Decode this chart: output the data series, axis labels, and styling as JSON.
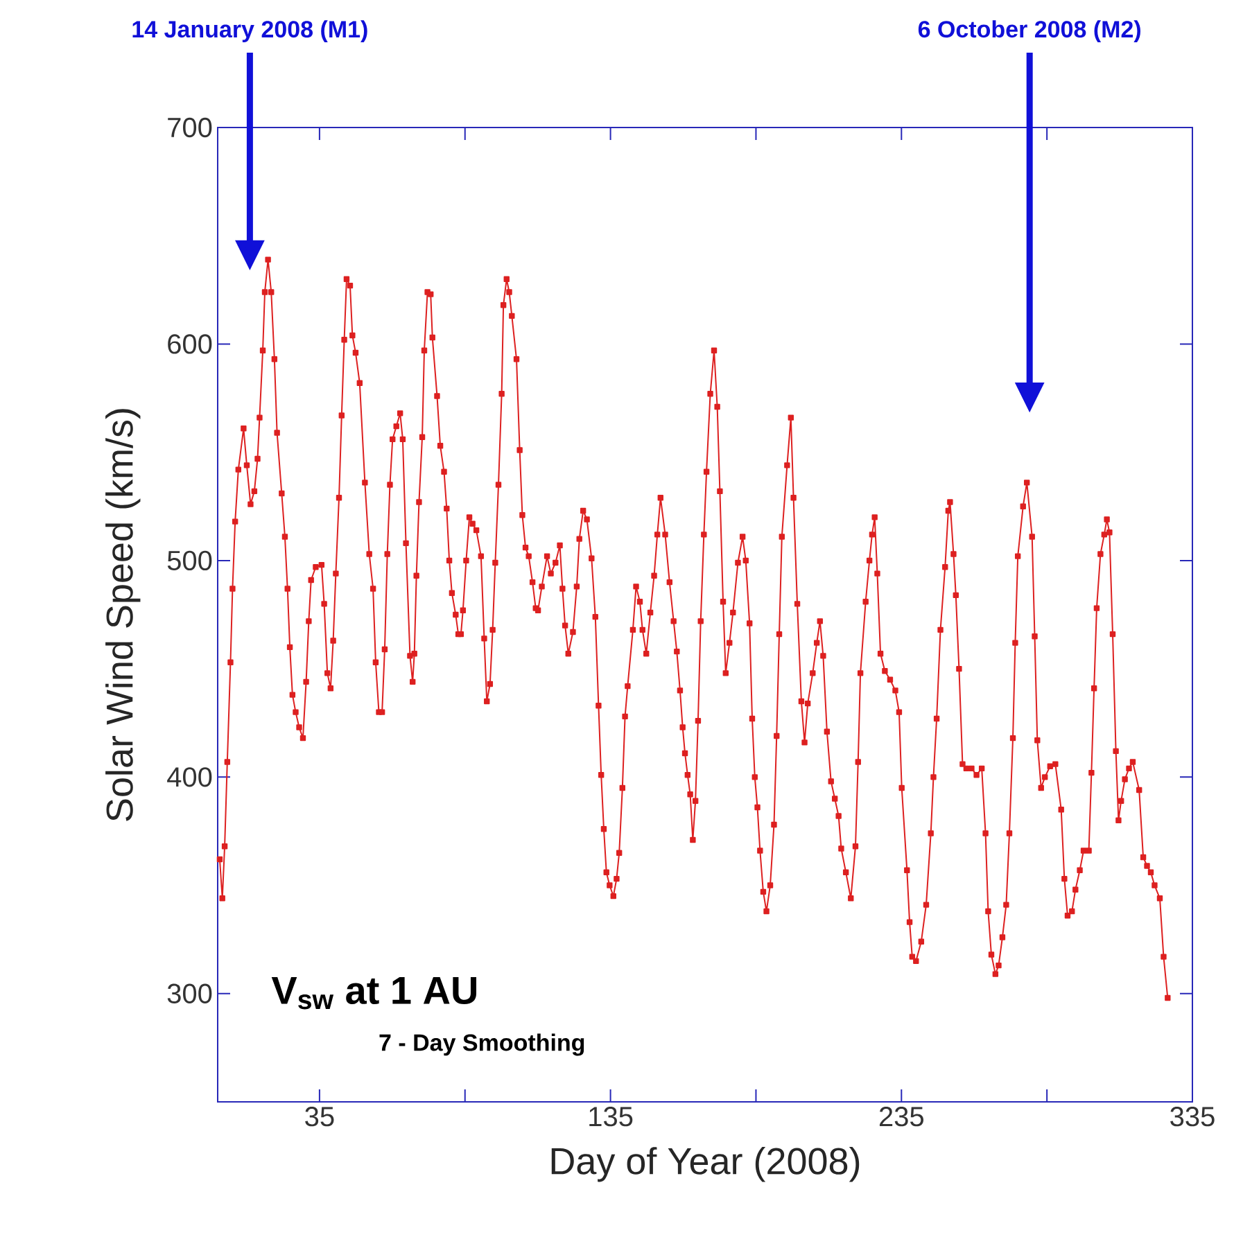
{
  "chart_data": {
    "type": "line",
    "xlabel": "Day of Year (2008)",
    "ylabel": "Solar Wind Speed (km/s)",
    "xlim": [
      0,
      335
    ],
    "ylim": [
      250,
      700
    ],
    "xticks": [
      35,
      {
        "value": 85,
        "label": null
      },
      135,
      {
        "value": 185,
        "label": null
      },
      235,
      {
        "value": 285,
        "label": null
      },
      335
    ],
    "yticks": [
      300,
      400,
      500,
      600,
      700
    ],
    "marker": "square",
    "line_style": "solid",
    "grid": false,
    "annotations": [
      "14 January 2008 (M1)",
      "6 October 2008 (M2)",
      "V$_{sw}$ at 1 AU",
      "7 - Day Smoothing"
    ],
    "series": [
      {
        "color": "#dd2020",
        "x": [
          0.7,
          1.6,
          2.4,
          3.3,
          4.4,
          5.1,
          6,
          7.1,
          8.9,
          10,
          11.3,
          12.6,
          13.7,
          14.4,
          15.5,
          16.2,
          17.3,
          18.4,
          19.5,
          20.4,
          22,
          23.1,
          24,
          24.8,
          25.7,
          26.8,
          28,
          29.3,
          30.4,
          31.3,
          32.1,
          33.7,
          35.7,
          36.6,
          37.7,
          38.8,
          39.7,
          40.6,
          41.7,
          42.6,
          43.5,
          44.3,
          45.5,
          46.3,
          47.4,
          48.8,
          50.6,
          52.1,
          53.4,
          54.3,
          55.4,
          56.5,
          57.4,
          58.3,
          59.2,
          60.1,
          61.4,
          62.7,
          63.6,
          64.7,
          66.1,
          67,
          67.6,
          68.3,
          69.2,
          70.3,
          71,
          72.1,
          73.2,
          73.8,
          75.4,
          76.5,
          77.8,
          78.7,
          79.6,
          80.5,
          81.8,
          82.7,
          83.6,
          84.3,
          85.4,
          86.5,
          87.6,
          88.9,
          90.5,
          91.6,
          92.5,
          93.6,
          94.5,
          95.4,
          96.5,
          97.6,
          98.2,
          99.3,
          100.2,
          101.1,
          102.7,
          103.8,
          104.7,
          105.8,
          106.9,
          108.2,
          109.3,
          110.1,
          111.4,
          113.2,
          114.5,
          116.1,
          117.6,
          118.5,
          119.4,
          120.5,
          122.1,
          123.4,
          124.3,
          125.6,
          126.9,
          128.5,
          129.8,
          130.9,
          131.8,
          132.7,
          133.6,
          134.7,
          136,
          137.1,
          138,
          139.1,
          140,
          140.9,
          142.7,
          143.8,
          145.1,
          146,
          147.3,
          148.7,
          150,
          151.1,
          152.2,
          153.8,
          155.3,
          156.7,
          157.8,
          158.9,
          159.8,
          160.6,
          161.5,
          162.4,
          163.3,
          164.2,
          165.1,
          166,
          167.1,
          168,
          169.3,
          170.6,
          171.7,
          172.6,
          173.7,
          174.6,
          175.9,
          177.1,
          178.8,
          180.4,
          181.5,
          182.8,
          183.7,
          184.6,
          185.5,
          186.4,
          187.5,
          188.6,
          189.9,
          191.2,
          192.1,
          193,
          193.9,
          195.7,
          197,
          197.9,
          199.2,
          200.6,
          201.7,
          202.8,
          204.5,
          205.9,
          207,
          208.1,
          209.4,
          210.8,
          212.1,
          213.4,
          214.3,
          215.9,
          217.6,
          219.2,
          220.1,
          220.9,
          222.7,
          224,
          224.9,
          225.8,
          226.7,
          227.8,
          229.3,
          231.1,
          232.9,
          234.2,
          235.1,
          236.9,
          237.8,
          238.7,
          240,
          241.8,
          243.5,
          245.1,
          246,
          247.1,
          248.4,
          250,
          251.1,
          251.7,
          252.9,
          253.7,
          254.8,
          256,
          257.3,
          259.1,
          260.8,
          262.6,
          263.9,
          264.8,
          265.9,
          267.3,
          268.4,
          269.7,
          271,
          272.1,
          273.3,
          274.1,
          275,
          276.8,
          278.1,
          279.9,
          280.8,
          281.7,
          283,
          284.3,
          286.1,
          287.9,
          289.9,
          291,
          292.1,
          293.6,
          294.8,
          296.3,
          297.6,
          299.4,
          300.3,
          301.2,
          302.1,
          303.4,
          304.7,
          305.6,
          306.5,
          307.6,
          308.7,
          309.6,
          310.5,
          311.8,
          313.2,
          314.5,
          316.7,
          318.1,
          319.4,
          320.7,
          322,
          323.8,
          325.1,
          326.5
        ],
        "values": [
          362,
          344,
          368,
          407,
          453,
          487,
          518,
          542,
          561,
          544,
          526,
          532,
          547,
          566,
          597,
          624,
          639,
          624,
          593,
          559,
          531,
          511,
          487,
          460,
          438,
          430,
          423,
          418,
          444,
          472,
          491,
          497,
          498,
          480,
          448,
          441,
          463,
          494,
          529,
          567,
          602,
          630,
          627,
          604,
          596,
          582,
          536,
          503,
          487,
          453,
          430,
          430,
          459,
          503,
          535,
          556,
          562,
          568,
          556,
          508,
          456,
          444,
          457,
          493,
          527,
          557,
          597,
          624,
          623,
          603,
          576,
          553,
          541,
          524,
          500,
          485,
          475,
          466,
          466,
          477,
          500,
          520,
          517,
          514,
          502,
          464,
          435,
          443,
          468,
          499,
          535,
          577,
          618,
          630,
          624,
          613,
          593,
          551,
          521,
          506,
          502,
          490,
          478,
          477,
          488,
          502,
          494,
          499,
          507,
          487,
          470,
          457,
          467,
          488,
          510,
          523,
          519,
          501,
          474,
          433,
          401,
          376,
          356,
          350,
          345,
          353,
          365,
          395,
          428,
          442,
          468,
          488,
          481,
          468,
          457,
          476,
          493,
          512,
          529,
          512,
          490,
          472,
          458,
          440,
          423,
          411,
          401,
          392,
          371,
          389,
          426,
          472,
          512,
          541,
          577,
          597,
          571,
          532,
          481,
          448,
          462,
          476,
          499,
          511,
          500,
          471,
          427,
          400,
          386,
          366,
          347,
          338,
          350,
          378,
          419,
          466,
          511,
          544,
          566,
          529,
          480,
          435,
          416,
          434,
          448,
          462,
          472,
          456,
          421,
          398,
          390,
          382,
          367,
          356,
          344,
          368,
          407,
          448,
          481,
          500,
          512,
          520,
          494,
          457,
          449,
          445,
          440,
          430,
          395,
          357,
          333,
          317,
          315,
          324,
          341,
          374,
          400,
          427,
          468,
          497,
          523,
          527,
          503,
          484,
          450,
          406,
          404,
          404,
          401,
          404,
          374,
          338,
          318,
          309,
          313,
          326,
          341,
          374,
          418,
          462,
          502,
          525,
          536,
          511,
          465,
          417,
          395,
          400,
          405,
          406,
          385,
          353,
          336,
          338,
          348,
          357,
          366,
          366,
          402,
          441,
          478,
          503,
          512,
          519,
          513,
          466,
          412,
          380,
          389,
          399,
          404,
          407,
          394,
          363,
          359,
          356,
          350,
          344,
          317,
          298
        ]
      }
    ]
  }
}
